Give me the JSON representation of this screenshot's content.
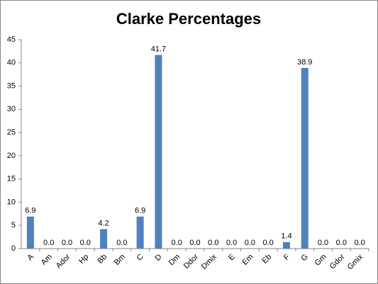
{
  "chart_data": {
    "type": "bar",
    "title": "Clarke Percentages",
    "categories": [
      "A",
      "Am",
      "Ador",
      "Hp",
      "Bb",
      "Bm",
      "C",
      "D",
      "Dm",
      "Ddor",
      "Dmix",
      "E",
      "Em",
      "Eb",
      "F",
      "G",
      "Gm",
      "Gdor",
      "Gmix"
    ],
    "values": [
      6.9,
      0,
      0,
      0,
      4.2,
      0,
      6.9,
      41.7,
      0,
      0,
      0,
      0,
      0,
      0,
      1.4,
      38.9,
      0,
      0,
      0
    ],
    "value_labels": [
      "6.9",
      "0.0",
      "0.0",
      "0.0",
      "4.2",
      "0.0",
      "6.9",
      "41.7",
      "0.0",
      "0.0",
      "0.0",
      "0.0",
      "0.0",
      "0.0",
      "1.4",
      "38.9",
      "0.0",
      "0.0",
      "0.0"
    ],
    "color": "#4f81bd",
    "ylim": [
      0,
      45
    ],
    "yticks": [
      0,
      5,
      10,
      15,
      20,
      25,
      30,
      35,
      40,
      45
    ],
    "grid": false
  }
}
